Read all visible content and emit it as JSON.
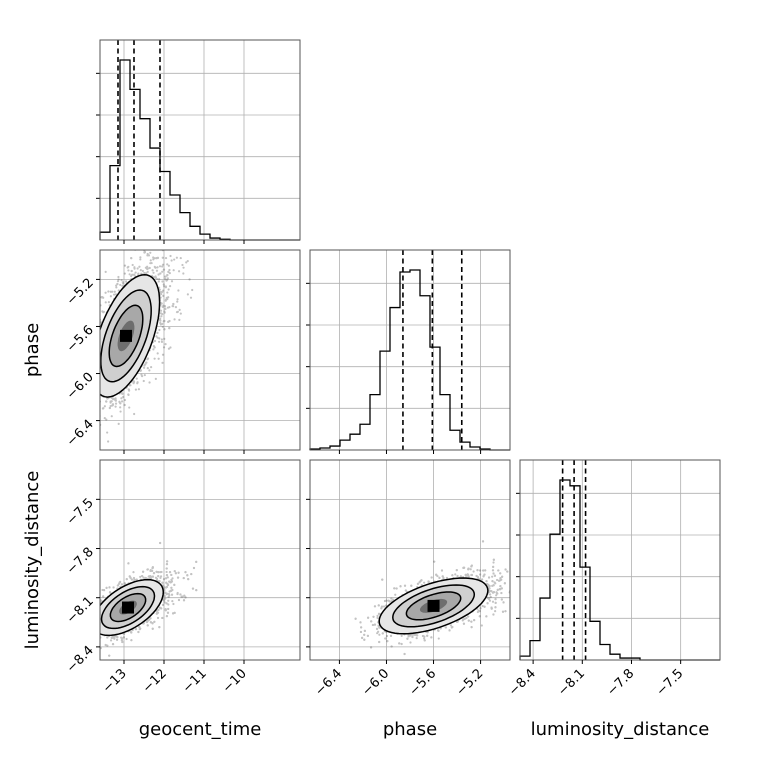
{
  "chart_data": {
    "type": "corner",
    "parameters": [
      "geocent_time",
      "phase",
      "luminosity_distance"
    ],
    "grid": true,
    "ranges": {
      "geocent_time": [
        -13.6,
        -8.6
      ],
      "phase": [
        -6.65,
        -4.95
      ],
      "luminosity_distance": [
        -8.48,
        -7.26
      ]
    },
    "ticks": {
      "geocent_time": [
        -13,
        -12,
        -11,
        -10
      ],
      "phase": [
        -6.4,
        -6.0,
        -5.6,
        -5.2
      ],
      "luminosity_distance": [
        -8.4,
        -8.1,
        -7.8,
        -7.5
      ]
    },
    "tick_labels": {
      "geocent_time": [
        "−13",
        "−12",
        "−11",
        "−10"
      ],
      "phase": [
        "−6.4",
        "−6.0",
        "−5.6",
        "−5.2"
      ],
      "luminosity_distance": [
        "−8.4",
        "−8.1",
        "−7.8",
        "−7.5"
      ]
    },
    "marginals": [
      {
        "parameter": "geocent_time",
        "bin_edges": [
          -13.6,
          -13.35,
          -13.1,
          -12.85,
          -12.6,
          -12.35,
          -12.1,
          -11.85,
          -11.6,
          -11.35,
          -11.1,
          -10.85,
          -10.6,
          -10.35,
          -10.1,
          -9.85,
          -9.6,
          -9.35,
          -9.1,
          -8.85,
          -8.6
        ],
        "counts": [
          0.04,
          0.38,
          0.92,
          0.77,
          0.62,
          0.47,
          0.35,
          0.23,
          0.14,
          0.07,
          0.03,
          0.01,
          0.004,
          0,
          0,
          0,
          0,
          0,
          0,
          0
        ],
        "quantiles": [
          -13.15,
          -12.75,
          -12.1
        ]
      },
      {
        "parameter": "phase",
        "bin_edges": [
          -6.65,
          -6.565,
          -6.48,
          -6.395,
          -6.31,
          -6.225,
          -6.14,
          -6.055,
          -5.97,
          -5.885,
          -5.8,
          -5.715,
          -5.63,
          -5.545,
          -5.46,
          -5.375,
          -5.29,
          -5.205,
          -5.12,
          -5.035,
          -4.95
        ],
        "counts": [
          0.005,
          0.01,
          0.02,
          0.05,
          0.08,
          0.13,
          0.28,
          0.5,
          0.72,
          0.9,
          0.91,
          0.78,
          0.52,
          0.28,
          0.1,
          0.04,
          0.015,
          0.005,
          0,
          0
        ],
        "quantiles": [
          -5.86,
          -5.61,
          -5.36
        ]
      },
      {
        "parameter": "luminosity_distance",
        "bin_edges": [
          -8.48,
          -8.419,
          -8.358,
          -8.297,
          -8.236,
          -8.175,
          -8.114,
          -8.053,
          -7.992,
          -7.931,
          -7.87,
          -7.809,
          -7.748,
          -7.687,
          -7.626,
          -7.565,
          -7.504,
          -7.443,
          -7.382,
          -7.321,
          -7.26
        ],
        "counts": [
          0.02,
          0.1,
          0.32,
          0.65,
          0.93,
          0.9,
          0.48,
          0.2,
          0.08,
          0.03,
          0.01,
          0.01,
          0,
          0,
          0,
          0,
          0,
          0,
          0,
          0
        ],
        "quantiles": [
          -8.22,
          -8.15,
          -8.08
        ]
      }
    ],
    "joint": [
      {
        "x": "geocent_time",
        "y": "phase",
        "mean": [
          -12.95,
          -5.68
        ],
        "std": [
          0.4,
          0.26
        ],
        "correlation": 0.55,
        "contour_levels_sigma": [
          0.5,
          1.0,
          1.5,
          2.0
        ],
        "scatter_points": 3500
      },
      {
        "x": "geocent_time",
        "y": "luminosity_distance",
        "mean": [
          -12.9,
          -8.16
        ],
        "std": [
          0.42,
          0.085
        ],
        "correlation": 0.55,
        "contour_levels_sigma": [
          0.5,
          1.0,
          1.5,
          2.0
        ],
        "scatter_points": 3500
      },
      {
        "x": "phase",
        "y": "luminosity_distance",
        "mean": [
          -5.6,
          -8.15
        ],
        "std": [
          0.22,
          0.085
        ],
        "correlation": 0.55,
        "contour_levels_sigma": [
          0.5,
          1.0,
          1.5,
          2.0
        ],
        "scatter_points": 3500
      }
    ]
  }
}
